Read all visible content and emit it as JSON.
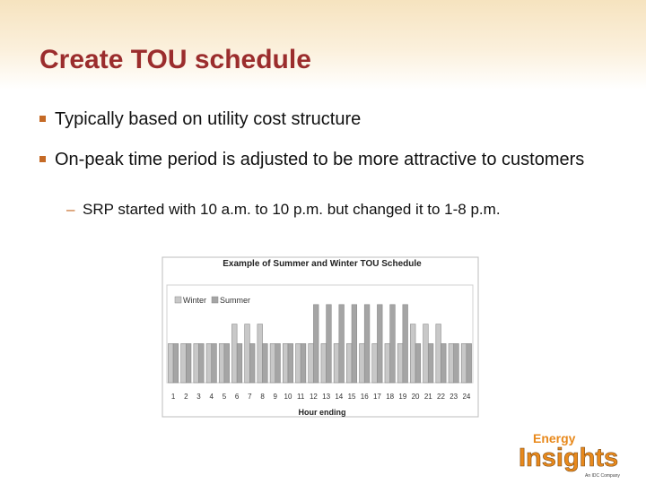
{
  "slide": {
    "title": "Create TOU schedule",
    "bullets": [
      "Typically based on utility cost structure",
      "On-peak time period is adjusted to be more attractive to customers"
    ],
    "sub_bullet": "SRP started with 10 a.m. to 10 p.m. but changed it to 1-8 p.m."
  },
  "colors": {
    "title": "#9b2d2d",
    "bullet_marker": "#c56a26",
    "winter": "#c8c8c8",
    "summer": "#a5a5a5",
    "logo_orange": "#e8891c"
  },
  "chart_data": {
    "type": "bar",
    "title": "Example of Summer and Winter TOU Schedule",
    "xlabel": "Hour ending",
    "ylabel": "",
    "categories": [
      "1",
      "2",
      "3",
      "4",
      "5",
      "6",
      "7",
      "8",
      "9",
      "10",
      "11",
      "12",
      "13",
      "14",
      "15",
      "16",
      "17",
      "18",
      "19",
      "20",
      "21",
      "22",
      "23",
      "24"
    ],
    "series": [
      {
        "name": "Winter",
        "values": [
          2,
          2,
          2,
          2,
          2,
          3,
          3,
          3,
          2,
          2,
          2,
          2,
          2,
          2,
          2,
          2,
          2,
          2,
          2,
          3,
          3,
          3,
          2,
          2
        ]
      },
      {
        "name": "Summer",
        "values": [
          2,
          2,
          2,
          2,
          2,
          2,
          2,
          2,
          2,
          2,
          2,
          4,
          4,
          4,
          4,
          4,
          4,
          4,
          4,
          2,
          2,
          2,
          2,
          2
        ]
      }
    ],
    "ylim": [
      0,
      5
    ],
    "grid": false,
    "legend": "top-left"
  },
  "logo": {
    "line1": "Energy",
    "line2": "Insights",
    "tagline": "An IDC Company"
  }
}
